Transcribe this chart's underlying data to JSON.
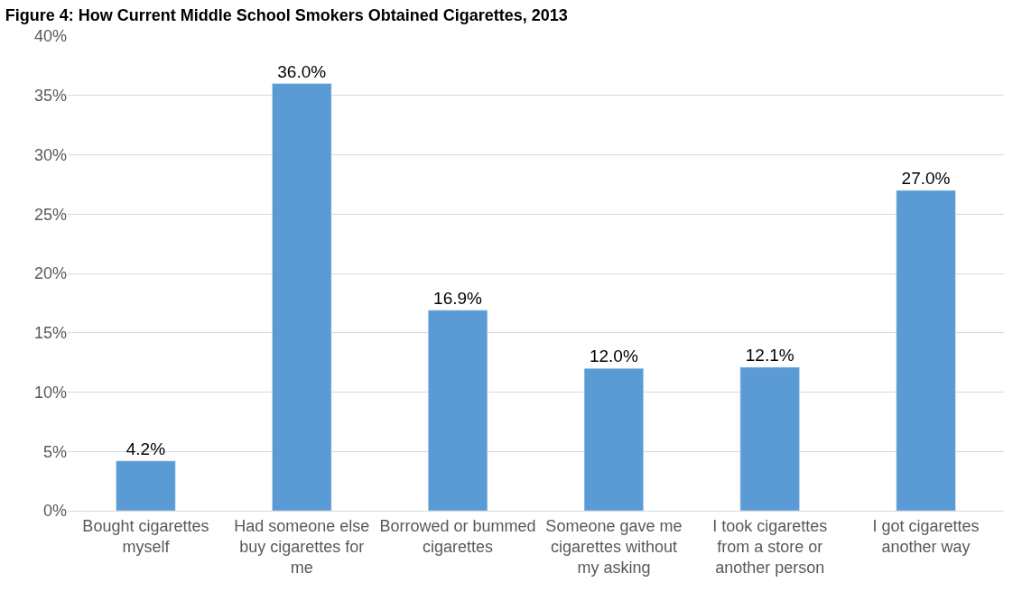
{
  "chart_data": {
    "type": "bar",
    "title": "Figure 4: How Current Middle School Smokers Obtained Cigarettes, 2013",
    "categories": [
      "Bought cigarettes myself",
      "Had someone else buy cigarettes for me",
      "Borrowed or bummed cigarettes",
      "Someone gave me cigarettes without my asking",
      "I took cigarettes from a store or another person",
      "I got cigarettes another way"
    ],
    "values": [
      4.2,
      36.0,
      16.9,
      12.0,
      12.1,
      27.0
    ],
    "value_labels": [
      "4.2%",
      "36.0%",
      "16.9%",
      "12.0%",
      "12.1%",
      "27.0%"
    ],
    "color": "#5b9bd5",
    "ylim": [
      0,
      40
    ],
    "yticks": [
      {
        "value": 0,
        "label": "0%"
      },
      {
        "value": 5,
        "label": "5%"
      },
      {
        "value": 10,
        "label": "10%"
      },
      {
        "value": 15,
        "label": "15%"
      },
      {
        "value": 20,
        "label": "20%"
      },
      {
        "value": 25,
        "label": "25%"
      },
      {
        "value": 30,
        "label": "30%"
      },
      {
        "value": 35,
        "label": "35%"
      },
      {
        "value": 40,
        "label": "40%"
      }
    ],
    "grid": "y"
  }
}
